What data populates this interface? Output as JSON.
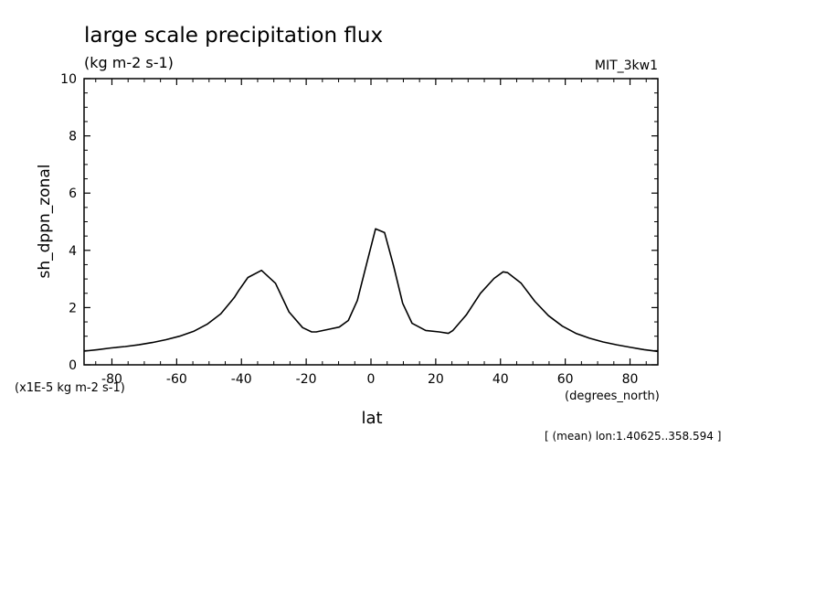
{
  "chart_data": {
    "type": "line",
    "title": "large scale precipitation flux",
    "subtitle": "(kg m-2 s-1)",
    "dataset_label": "MIT_3kw1",
    "ylabel": "sh_dppn_zonal",
    "xlabel": "lat",
    "x_units": "(degrees_north)",
    "y_units": "(x1E-5 kg m-2 s-1)",
    "footnote": "[ (mean) lon:1.40625..358.594 ]",
    "xlim": [
      -88.6,
      88.6
    ],
    "ylim": [
      0,
      10
    ],
    "x_ticks": [
      -80,
      -60,
      -40,
      -20,
      0,
      20,
      40,
      60,
      80
    ],
    "x_tick_labels": [
      "-80",
      "-60",
      "-40",
      "-20",
      "0",
      "20",
      "40",
      "60",
      "80"
    ],
    "y_ticks": [
      0,
      2,
      4,
      6,
      8,
      10
    ],
    "y_tick_labels": [
      "0",
      "2",
      "4",
      "6",
      "8",
      "10"
    ],
    "grid": false,
    "series": [
      {
        "x": [
          -88.6,
          -84.4,
          -80.2,
          -75.9,
          -71.7,
          -67.5,
          -63.3,
          -59.1,
          -54.8,
          -50.6,
          -46.4,
          -42.2,
          -40.8,
          -38.0,
          -33.8,
          -29.5,
          -25.3,
          -21.1,
          -18.3,
          -16.9,
          -12.7,
          -9.8,
          -7.0,
          -4.2,
          -1.4,
          1.4,
          4.2,
          7.0,
          9.8,
          12.7,
          16.9,
          21.1,
          23.9,
          25.3,
          29.5,
          33.8,
          38.0,
          40.8,
          42.2,
          46.4,
          50.6,
          54.8,
          59.1,
          63.3,
          67.5,
          71.7,
          75.9,
          80.2,
          84.4,
          88.6
        ],
        "values": [
          0.48,
          0.53,
          0.59,
          0.64,
          0.7,
          0.78,
          0.88,
          1.0,
          1.17,
          1.42,
          1.78,
          2.35,
          2.6,
          3.05,
          3.3,
          2.85,
          1.85,
          1.3,
          1.15,
          1.15,
          1.25,
          1.32,
          1.55,
          2.25,
          3.5,
          4.75,
          4.62,
          3.45,
          2.15,
          1.45,
          1.2,
          1.15,
          1.1,
          1.2,
          1.75,
          2.5,
          3.02,
          3.25,
          3.22,
          2.85,
          2.22,
          1.72,
          1.35,
          1.1,
          0.93,
          0.8,
          0.7,
          0.61,
          0.53,
          0.47
        ]
      }
    ]
  }
}
